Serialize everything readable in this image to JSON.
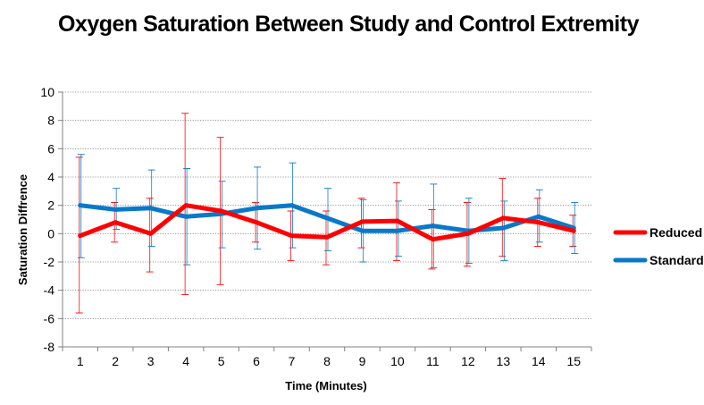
{
  "chart_data": {
    "type": "line",
    "title": "Oxygen Saturation Between Study and Control Extremity",
    "xlabel": "Time (Minutes)",
    "ylabel": "Saturation Diffrence",
    "categories": [
      "1",
      "2",
      "3",
      "4",
      "5",
      "6",
      "7",
      "8",
      "9",
      "10",
      "11",
      "12",
      "13",
      "14",
      "15"
    ],
    "ylim": [
      -8,
      10
    ],
    "yticks": [
      "10",
      "8",
      "6",
      "4",
      "2",
      "0",
      "-2",
      "-4",
      "-6",
      "-8"
    ],
    "ytick_values": [
      10,
      8,
      6,
      4,
      2,
      0,
      -2,
      -4,
      -6,
      -8
    ],
    "grid": "horizontal-dotted",
    "legend": "right",
    "series": [
      {
        "name": "Reduced",
        "color": "#ff0000",
        "values": [
          -0.15,
          0.8,
          0.0,
          2.0,
          1.6,
          0.8,
          -0.15,
          -0.25,
          0.85,
          0.9,
          -0.4,
          0.0,
          1.1,
          0.8,
          0.2
        ],
        "error_upper": [
          5.4,
          2.2,
          2.5,
          8.5,
          6.8,
          2.2,
          1.6,
          1.6,
          2.5,
          3.6,
          1.7,
          2.2,
          3.9,
          2.5,
          1.3
        ],
        "error_lower": [
          -5.6,
          -0.6,
          -2.7,
          -4.3,
          -3.6,
          -0.6,
          -1.9,
          -2.2,
          -1.0,
          -1.9,
          -2.5,
          -2.3,
          -1.6,
          -0.9,
          -0.9
        ]
      },
      {
        "name": "Standard",
        "color": "#0a78c8",
        "values": [
          2.0,
          1.7,
          1.8,
          1.2,
          1.4,
          1.8,
          2.0,
          1.1,
          0.2,
          0.2,
          0.55,
          0.2,
          0.4,
          1.2,
          0.4
        ],
        "error_upper": [
          5.6,
          3.2,
          4.5,
          4.6,
          3.7,
          4.7,
          5.0,
          3.2,
          2.4,
          2.3,
          3.5,
          2.5,
          2.3,
          3.1,
          2.2
        ],
        "error_lower": [
          -1.7,
          0.3,
          -0.9,
          -2.2,
          -1.0,
          -1.1,
          -1.0,
          -1.2,
          -2.0,
          -1.6,
          -2.4,
          -2.1,
          -1.9,
          -0.6,
          -1.4
        ]
      }
    ]
  }
}
